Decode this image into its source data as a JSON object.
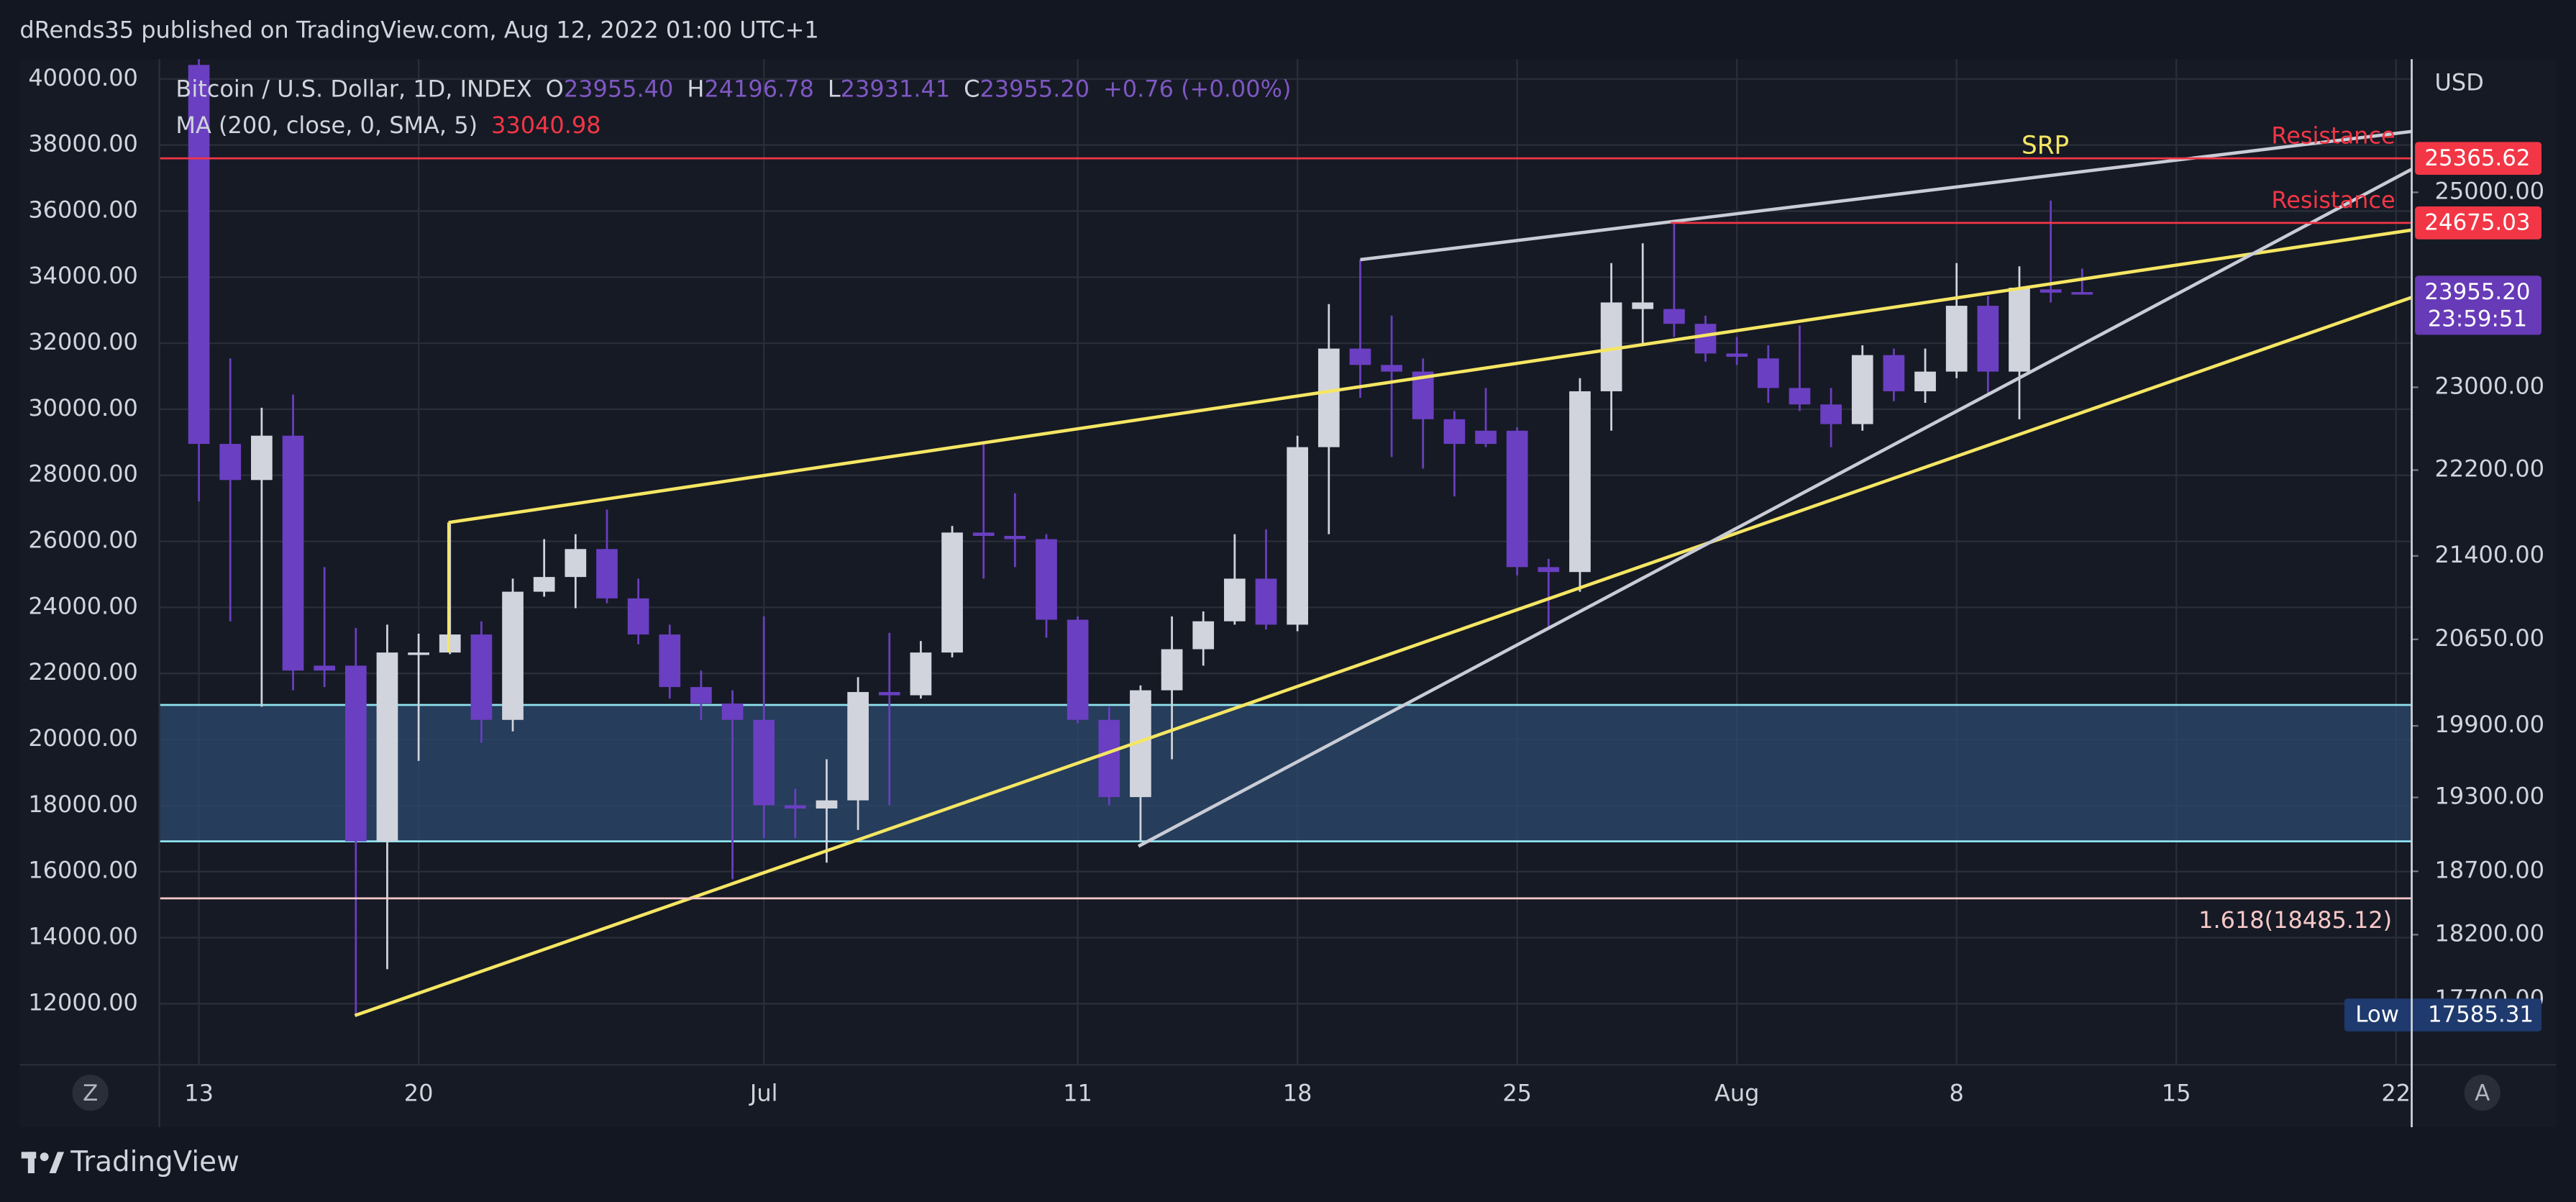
{
  "header": {
    "publisher": "dRends35 published on TradingView.com, Aug 12, 2022 01:00 UTC+1",
    "symbol": "Bitcoin / U.S. Dollar, 1D, INDEX",
    "o_label": "O",
    "o": "23955.40",
    "h_label": "H",
    "h": "24196.78",
    "l_label": "L",
    "l": "23931.41",
    "c_label": "C",
    "c": "23955.20",
    "change": "+0.76 (+0.00%)",
    "ma": "MA (200, close, 0, SMA, 5)",
    "ma_value": "33040.98",
    "logo": "TradingView",
    "left_button": "Z",
    "right_button": "A"
  },
  "chart_data": {
    "type": "candlestick",
    "axis": "y2",
    "up_color": "#d1d4dc",
    "down_color": "#6a3fc1",
    "grid": true,
    "y2log": true,
    "y2label": "USD",
    "open": [
      26400,
      22450,
      22106,
      22529,
      20419,
      20419,
      18941,
      20520,
      20534,
      20693,
      19951,
      21075,
      21208,
      21463,
      21015,
      20693,
      20233,
      20091,
      19951,
      19236,
      19209,
      19276,
      20190,
      20162,
      20534,
      21615,
      21584,
      21554,
      20824,
      19951,
      19303,
      20205,
      20563,
      20810,
      21193,
      20780,
      22419,
      23384,
      23221,
      23155,
      22688,
      22577,
      22577,
      21298,
      21253,
      22961,
      23783,
      23783,
      23633,
      23335,
      23286,
      22993,
      22832,
      22641,
      23319,
      22961,
      23155,
      23816,
      23155,
      23984,
      23955.4
    ],
    "high": [
      26600,
      23286,
      22800,
      22929,
      21298,
      20751,
      20780,
      20700,
      21706,
      20810,
      21193,
      21554,
      21600,
      21828,
      21193,
      20780,
      20376,
      20205,
      20854,
      19371,
      19618,
      20319,
      20708,
      20635,
      21676,
      22450,
      21982,
      21600,
      20854,
      20063,
      20247,
      20854,
      20898,
      21600,
      21645,
      22529,
      23833,
      24290,
      23716,
      23286,
      22768,
      22993,
      22609,
      21373,
      23090,
      24255,
      24461,
      24686,
      23716,
      23500,
      23417,
      23616,
      22993,
      23417,
      23384,
      23384,
      24255,
      23917,
      24221,
      24912,
      24196.78
    ],
    "low": [
      21905,
      20810,
      20063,
      20205,
      20233,
      17585.31,
      17933,
      19604,
      20520,
      19756,
      19853,
      21030,
      20927,
      20971,
      20606,
      20134,
      19951,
      18637,
      18968,
      18968,
      18769,
      19034,
      19236,
      20134,
      20491,
      21193,
      21298,
      20664,
      19923,
      19236,
      18941,
      19618,
      20419,
      20780,
      20737,
      20722,
      21600,
      22897,
      22324,
      22215,
      21951,
      22419,
      21223,
      20751,
      21075,
      22577,
      23417,
      23500,
      23253,
      23221,
      22848,
      22768,
      22419,
      22577,
      22864,
      22848,
      23090,
      22929,
      22688,
      23850,
      23931.41
    ],
    "close": [
      22450,
      22106,
      22529,
      20376,
      20376,
      18941,
      20534,
      20534,
      20693,
      19951,
      21075,
      21208,
      21463,
      21015,
      20693,
      20233,
      20091,
      19951,
      19236,
      19209,
      19276,
      20190,
      20162,
      20534,
      21615,
      21584,
      21554,
      20824,
      19951,
      19303,
      20205,
      20563,
      20810,
      21193,
      20780,
      22419,
      23384,
      23221,
      23155,
      22688,
      22450,
      22450,
      21298,
      21253,
      22961,
      23850,
      23850,
      23633,
      23335,
      23302,
      22993,
      22832,
      22641,
      23319,
      22961,
      23155,
      23816,
      23155,
      24001,
      23950,
      23955.2
    ],
    "xlim": [
      -1.26,
      70.5
    ],
    "xticks": [
      {
        "value": 0,
        "label": "13"
      },
      {
        "value": 7,
        "label": "20"
      },
      {
        "value": 18,
        "label": "Jul"
      },
      {
        "value": 28,
        "label": "11"
      },
      {
        "value": 35,
        "label": "18"
      },
      {
        "value": 42,
        "label": "25"
      },
      {
        "value": 49,
        "label": "Aug"
      },
      {
        "value": 56,
        "label": "8"
      },
      {
        "value": 63,
        "label": "15"
      },
      {
        "value": 70,
        "label": "22"
      }
    ],
    "ylim": [
      10150,
      40600
    ],
    "yticks": [
      {
        "value": 12000,
        "label": "12000.00"
      },
      {
        "value": 14000,
        "label": "14000.00"
      },
      {
        "value": 16000,
        "label": "16000.00"
      },
      {
        "value": 18000,
        "label": "18000.00"
      },
      {
        "value": 20000,
        "label": "20000.00"
      },
      {
        "value": 22000,
        "label": "22000.00"
      },
      {
        "value": 24000,
        "label": "24000.00"
      },
      {
        "value": 26000,
        "label": "26000.00"
      },
      {
        "value": 28000,
        "label": "28000.00"
      },
      {
        "value": 30000,
        "label": "30000.00"
      },
      {
        "value": 32000,
        "label": "32000.00"
      },
      {
        "value": 34000,
        "label": "34000.00"
      },
      {
        "value": 36000,
        "label": "36000.00"
      },
      {
        "value": 38000,
        "label": "38000.00"
      },
      {
        "value": 40000,
        "label": "40000.00"
      }
    ],
    "y2lim": [
      17215,
      26465
    ],
    "y2ticks": [
      {
        "value": 25000,
        "label": "25000.00"
      },
      {
        "value": 23000,
        "label": "23000.00"
      },
      {
        "value": 22200,
        "label": "22200.00"
      },
      {
        "value": 21400,
        "label": "21400.00"
      },
      {
        "value": 20650,
        "label": "20650.00"
      },
      {
        "value": 19900,
        "label": "19900.00"
      },
      {
        "value": 19300,
        "label": "19300.00"
      },
      {
        "value": 18700,
        "label": "18700.00"
      },
      {
        "value": 18200,
        "label": "18200.00"
      },
      {
        "value": 17700,
        "label": "17700.00"
      }
    ],
    "levels": [
      {
        "value": 25365.62,
        "label": "25365.62",
        "text": "Resistance",
        "color": "#f23645"
      },
      {
        "value": 24675.03,
        "label": "24675.03",
        "text": "Resistance",
        "color": "#f23645"
      }
    ],
    "last_price": {
      "value": 23955.2,
      "label": "23955.20",
      "countdown": "23:59:51",
      "color": "#673ab7"
    },
    "fib": {
      "value": 18485.12,
      "label": "1.618(18485.12)",
      "color": "#f7c8c8"
    },
    "low_mark": {
      "text": "Low",
      "value": 17585.31,
      "label": "17585.31",
      "color": "#1e3a6e"
    },
    "annotation": {
      "text": "SRP",
      "color": "#f5e663"
    }
  }
}
